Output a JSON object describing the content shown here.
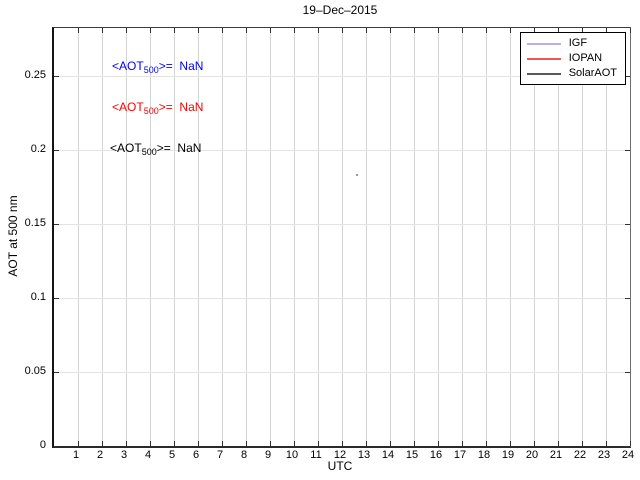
{
  "figure": {
    "background": "#ffffff"
  },
  "chart_data": {
    "type": "line",
    "title": "19–Dec–2015",
    "xlabel": "UTC",
    "ylabel": "AOT at 500 nm",
    "xlim": [
      0,
      24
    ],
    "ylim": [
      0,
      0.2825
    ],
    "xticks": [
      1,
      2,
      3,
      4,
      5,
      6,
      7,
      8,
      9,
      10,
      11,
      12,
      13,
      14,
      15,
      16,
      17,
      18,
      19,
      20,
      21,
      22,
      23,
      24
    ],
    "yticks": [
      0,
      0.05,
      0.1,
      0.15,
      0.2,
      0.25
    ],
    "grid": true,
    "series": [
      {
        "name": "IGF",
        "color": "#0000ff",
        "x": [],
        "values": [],
        "mean_aot_500": "NaN"
      },
      {
        "name": "IOPAN",
        "color": "#ff0000",
        "x": [],
        "values": [],
        "mean_aot_500": "NaN"
      },
      {
        "name": "SolarAOT",
        "color": "#000000",
        "x": [],
        "values": [],
        "mean_aot_500": "NaN"
      }
    ],
    "legend": {
      "position": "top-right",
      "entries": [
        {
          "label": "IGF",
          "line_color": "#b2b2ee"
        },
        {
          "label": "IOPAN",
          "line_color": "#ee5555"
        },
        {
          "label": "SolarAOT",
          "line_color": "#595959"
        }
      ]
    },
    "annotations": [
      {
        "prefix": "<AOT",
        "sub": "500",
        "suffix": ">=  NaN",
        "color": "#0000ff",
        "x": 2.42,
        "y": 0.2561
      },
      {
        "prefix": "<AOT",
        "sub": "500",
        "suffix": ">=  NaN",
        "color": "#ff0000",
        "x": 2.42,
        "y": 0.2284
      },
      {
        "prefix": "<AOT",
        "sub": "500",
        "suffix": ">=  NaN",
        "color": "#000000",
        "x": 2.35,
        "y": 0.2007
      }
    ],
    "stray_point": {
      "x": 12.6,
      "y": 0.184,
      "color": "#999999"
    }
  },
  "style_colors": {
    "axis_line": "#333333",
    "grid_vertical": "#d4d4d4",
    "grid_horizontal": "#e3e3e3",
    "tick_mark": "#333333",
    "legend_border": "#000000"
  }
}
